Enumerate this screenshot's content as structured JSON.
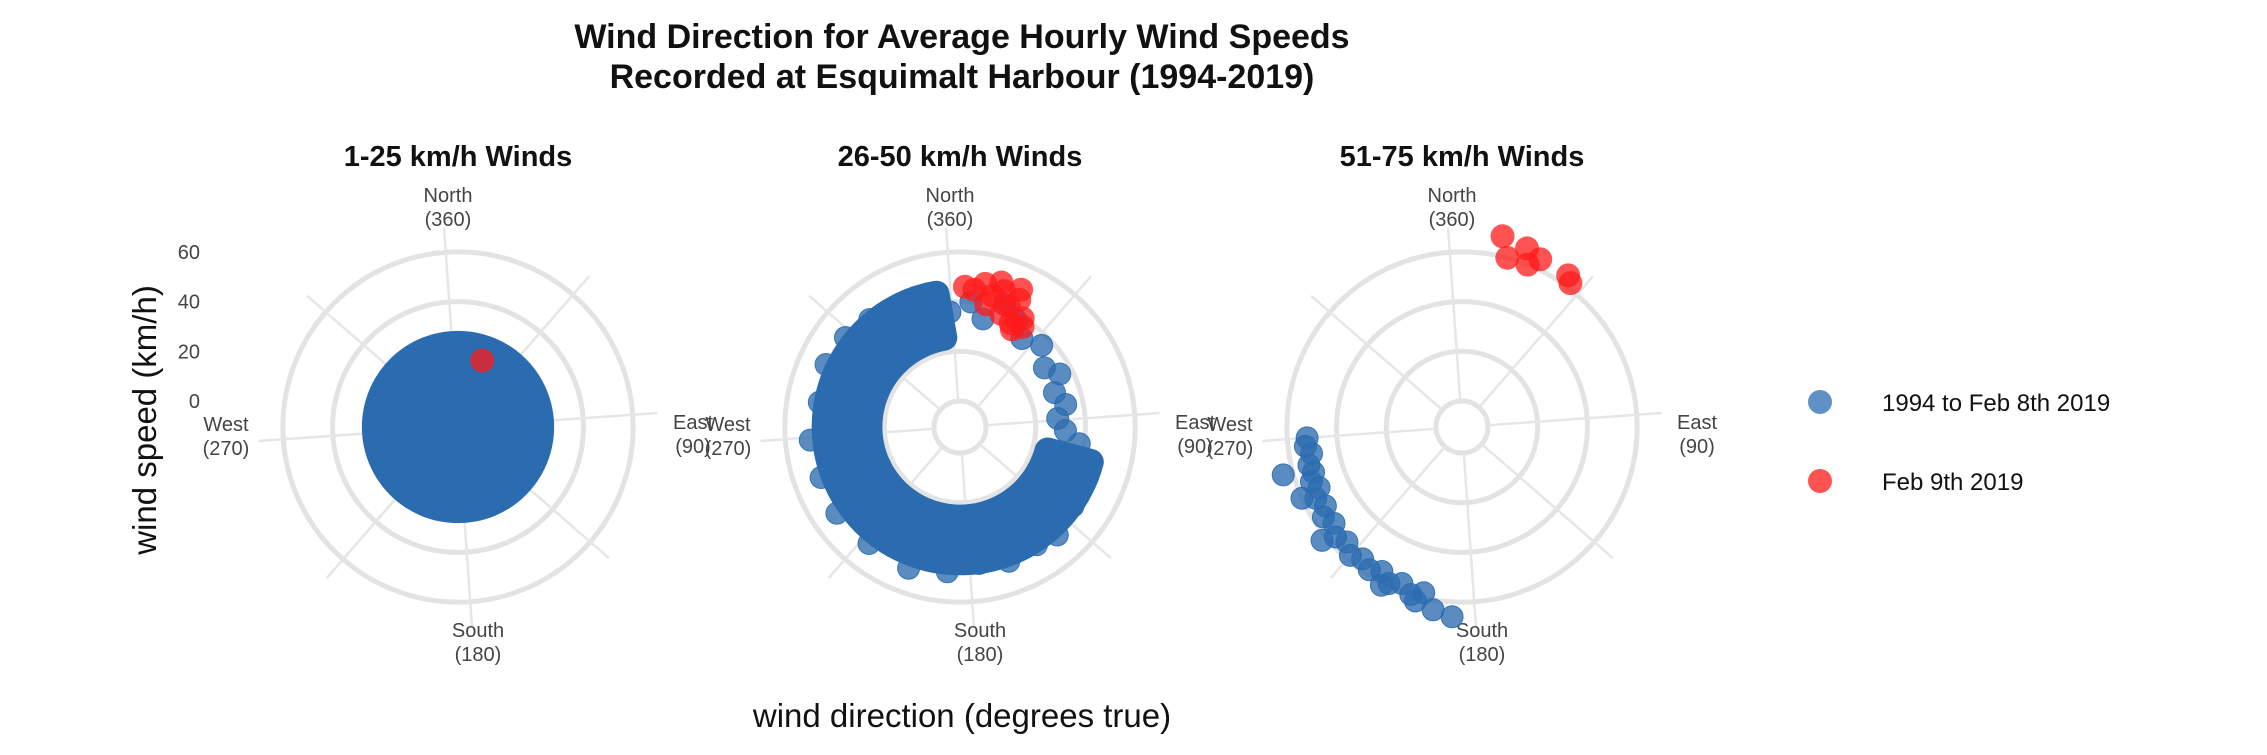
{
  "chart_data": {
    "type": "scatter",
    "coord": "polar",
    "title": [
      "Wind Direction for Average Hourly Wind Speeds",
      "Recorded at Esquimalt Harbour (1994-2019)"
    ],
    "xlabel": "wind direction (degrees true)",
    "ylabel": "wind speed (km/h)",
    "rlim": [
      0,
      70
    ],
    "r_ticks": [
      0,
      20,
      40,
      60
    ],
    "direction_labels": [
      {
        "name": "North",
        "deg": "(360)"
      },
      {
        "name": "East",
        "deg": "(90)"
      },
      {
        "name": "South",
        "deg": "(180)"
      },
      {
        "name": "West",
        "deg": "(270)"
      }
    ],
    "legend": {
      "position": "right",
      "entries": [
        {
          "label": "1994 to Feb 8th 2019",
          "color": "#2b6cb0"
        },
        {
          "label": "Feb 9th 2019",
          "color": "#ff1a1a"
        }
      ]
    },
    "colors": {
      "historic": "#2b6cb0",
      "feb9": "#ff1a1a",
      "grid": "#e3e3e3"
    },
    "facets": [
      {
        "title": "1-25 km/h Winds",
        "show_r_ticks": true,
        "historic_fill": {
          "r_min": 0,
          "r_max": 25
        },
        "historic_points": [],
        "feb9_points": [
          {
            "dir": 20,
            "speed": 18
          }
        ]
      },
      {
        "title": "26-50 km/h Winds",
        "show_r_ticks": false,
        "historic_fill": {
          "r_min": 26,
          "r_max": 44,
          "dir_from": 105,
          "dir_to": 350
        },
        "historic_points": [
          {
            "dir": 355,
            "speed": 36
          },
          {
            "dir": 5,
            "speed": 40
          },
          {
            "dir": 12,
            "speed": 34
          },
          {
            "dir": 20,
            "speed": 42
          },
          {
            "dir": 28,
            "speed": 38
          },
          {
            "dir": 35,
            "speed": 33
          },
          {
            "dir": 45,
            "speed": 36
          },
          {
            "dir": 55,
            "speed": 31
          },
          {
            "dir": 62,
            "speed": 35
          },
          {
            "dir": 70,
            "speed": 30
          },
          {
            "dir": 78,
            "speed": 33
          },
          {
            "dir": 85,
            "speed": 29
          },
          {
            "dir": 92,
            "speed": 32
          },
          {
            "dir": 98,
            "speed": 38
          },
          {
            "dir": 104,
            "speed": 31
          },
          {
            "dir": 110,
            "speed": 36
          },
          {
            "dir": 118,
            "speed": 41
          },
          {
            "dir": 125,
            "speed": 45
          },
          {
            "dir": 130,
            "speed": 42
          },
          {
            "dir": 138,
            "speed": 48
          },
          {
            "dir": 147,
            "speed": 46
          },
          {
            "dir": 160,
            "speed": 47
          },
          {
            "dir": 172,
            "speed": 45
          },
          {
            "dir": 185,
            "speed": 48
          },
          {
            "dir": 200,
            "speed": 50
          },
          {
            "dir": 218,
            "speed": 49
          },
          {
            "dir": 235,
            "speed": 50
          },
          {
            "dir": 250,
            "speed": 49
          },
          {
            "dir": 265,
            "speed": 50
          },
          {
            "dir": 280,
            "speed": 47
          },
          {
            "dir": 295,
            "speed": 49
          },
          {
            "dir": 308,
            "speed": 48
          },
          {
            "dir": 320,
            "speed": 46
          },
          {
            "dir": 330,
            "speed": 42
          },
          {
            "dir": 340,
            "speed": 40
          },
          {
            "dir": 348,
            "speed": 38
          }
        ],
        "feb9_points": [
          {
            "dir": 6,
            "speed": 45
          },
          {
            "dir": 10,
            "speed": 48
          },
          {
            "dir": 14,
            "speed": 44
          },
          {
            "dir": 18,
            "speed": 47
          },
          {
            "dir": 22,
            "speed": 42
          },
          {
            "dir": 25,
            "speed": 46
          },
          {
            "dir": 12,
            "speed": 40
          },
          {
            "dir": 20,
            "speed": 38
          },
          {
            "dir": 26,
            "speed": 36
          },
          {
            "dir": 30,
            "speed": 40
          },
          {
            "dir": 28,
            "speed": 34
          },
          {
            "dir": 2,
            "speed": 46
          },
          {
            "dir": 16,
            "speed": 50
          },
          {
            "dir": 32,
            "speed": 37
          },
          {
            "dir": 24,
            "speed": 50
          }
        ]
      },
      {
        "title": "51-75 km/h Winds",
        "show_r_ticks": false,
        "historic_fill": null,
        "historic_points": [
          {
            "dir": 266,
            "speed": 52
          },
          {
            "dir": 263,
            "speed": 53
          },
          {
            "dir": 260,
            "speed": 51
          },
          {
            "dir": 256,
            "speed": 53
          },
          {
            "dir": 253,
            "speed": 52
          },
          {
            "dir": 255,
            "speed": 64
          },
          {
            "dir": 250,
            "speed": 54
          },
          {
            "dir": 247,
            "speed": 52
          },
          {
            "dir": 244,
            "speed": 55
          },
          {
            "dir": 240,
            "speed": 53
          },
          {
            "dir": 246,
            "speed": 60
          },
          {
            "dir": 237,
            "speed": 56
          },
          {
            "dir": 233,
            "speed": 54
          },
          {
            "dir": 229,
            "speed": 57
          },
          {
            "dir": 225,
            "speed": 55
          },
          {
            "dir": 231,
            "speed": 62
          },
          {
            "dir": 221,
            "speed": 58
          },
          {
            "dir": 217,
            "speed": 56
          },
          {
            "dir": 213,
            "speed": 58
          },
          {
            "dir": 209,
            "speed": 56
          },
          {
            "dir": 205,
            "speed": 59
          },
          {
            "dir": 201,
            "speed": 57
          },
          {
            "dir": 207,
            "speed": 61
          },
          {
            "dir": 197,
            "speed": 60
          },
          {
            "dir": 193,
            "speed": 58
          },
          {
            "dir": 195,
            "speed": 62
          },
          {
            "dir": 189,
            "speed": 64
          },
          {
            "dir": 183,
            "speed": 66
          }
        ],
        "feb9_points": [
          {
            "dir": 15,
            "speed": 60
          },
          {
            "dir": 22,
            "speed": 60
          },
          {
            "dir": 25,
            "speed": 64
          },
          {
            "dir": 20,
            "speed": 66
          },
          {
            "dir": 35,
            "speed": 64
          },
          {
            "dir": 37,
            "speed": 62
          },
          {
            "dir": 12,
            "speed": 68
          }
        ]
      }
    ]
  }
}
